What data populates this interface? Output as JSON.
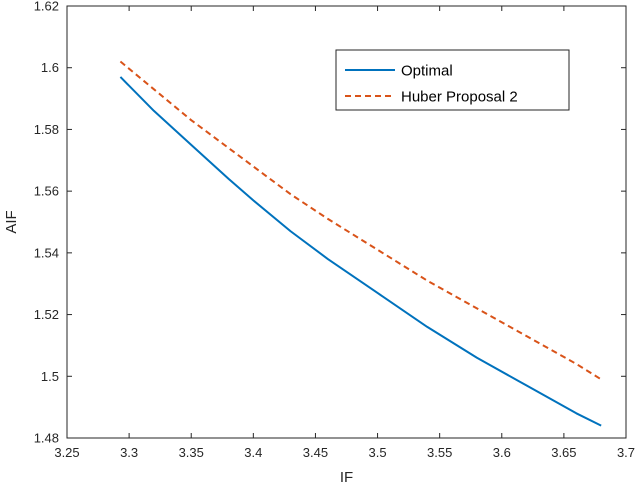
{
  "chart_data": {
    "type": "line",
    "title": "",
    "xlabel": "IF",
    "ylabel": "AIF",
    "xlim": [
      3.25,
      3.7
    ],
    "ylim": [
      1.48,
      1.62
    ],
    "xticks": [
      3.25,
      3.3,
      3.35,
      3.4,
      3.45,
      3.5,
      3.55,
      3.6,
      3.65,
      3.7
    ],
    "xtick_labels": [
      "3.25",
      "3.3",
      "3.35",
      "3.4",
      "3.45",
      "3.5",
      "3.55",
      "3.6",
      "3.65",
      "3.7"
    ],
    "yticks": [
      1.48,
      1.5,
      1.52,
      1.54,
      1.56,
      1.58,
      1.6,
      1.62
    ],
    "ytick_labels": [
      "1.48",
      "1.5",
      "1.52",
      "1.54",
      "1.56",
      "1.58",
      "1.6",
      "1.62"
    ],
    "grid": false,
    "legend_position": "top-right",
    "series": [
      {
        "name": "Optimal",
        "color": "#0072BD",
        "style": "solid",
        "x": [
          3.293,
          3.32,
          3.35,
          3.38,
          3.4,
          3.43,
          3.46,
          3.5,
          3.54,
          3.58,
          3.62,
          3.66,
          3.68
        ],
        "y": [
          1.597,
          1.586,
          1.575,
          1.564,
          1.557,
          1.547,
          1.538,
          1.527,
          1.516,
          1.506,
          1.497,
          1.488,
          1.484
        ]
      },
      {
        "name": "Huber Proposal 2",
        "color": "#D95319",
        "style": "dashed",
        "x": [
          3.293,
          3.32,
          3.35,
          3.38,
          3.4,
          3.43,
          3.46,
          3.5,
          3.54,
          3.58,
          3.62,
          3.66,
          3.68
        ],
        "y": [
          1.602,
          1.593,
          1.583,
          1.574,
          1.568,
          1.559,
          1.551,
          1.541,
          1.531,
          1.522,
          1.513,
          1.504,
          1.499
        ]
      }
    ]
  }
}
